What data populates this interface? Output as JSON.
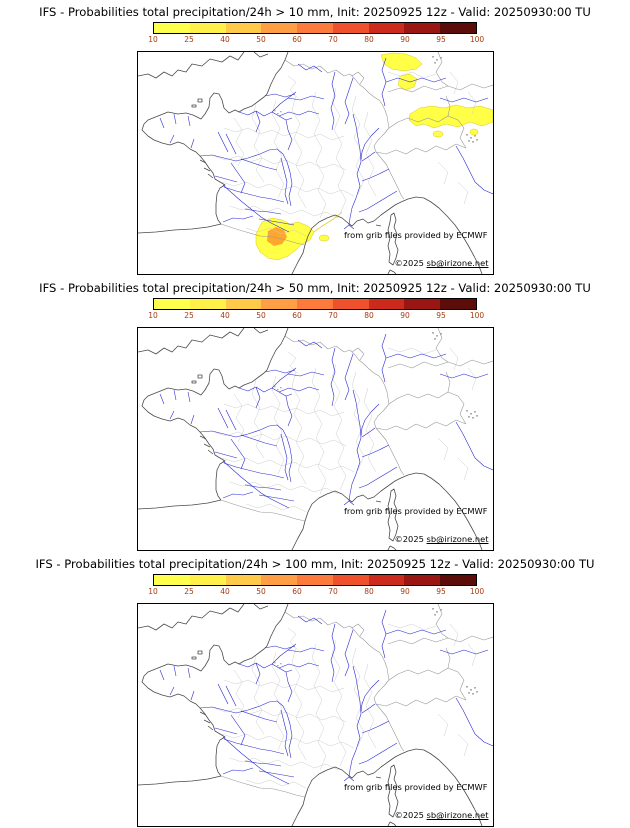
{
  "colorbar": {
    "ticks": [
      "10",
      "25",
      "40",
      "50",
      "60",
      "70",
      "80",
      "90",
      "95",
      "100"
    ],
    "colors": [
      "#ffff4d",
      "#fff04a",
      "#ffc94a",
      "#ff9e45",
      "#fb7a3c",
      "#f0512d",
      "#cc2a1c",
      "#991612",
      "#5c0d0a"
    ],
    "tick_color": "#a63c12"
  },
  "map": {
    "river_color": "#2b2bd6",
    "overlay_yellow": "#ffff45",
    "overlay_outline": "#ddc81a",
    "overlay_orange": "#ffa62e"
  },
  "panels": [
    {
      "title": "IFS - Probabilities total precipitation/24h > 10 mm, Init: 20250925 12z - Valid: 20250930:00 TU",
      "credit1": "from grib files provided by ECMWF",
      "credit2_prefix": "©2025 ",
      "credit2_link": "sb@irizone.net"
    },
    {
      "title": "IFS - Probabilities total precipitation/24h > 50 mm, Init: 20250925 12z - Valid: 20250930:00 TU",
      "credit1": "from grib files provided by ECMWF",
      "credit2_prefix": "©2025 ",
      "credit2_link": "sb@irizone.net"
    },
    {
      "title": "IFS - Probabilities total precipitation/24h > 100 mm, Init: 20250925 12z - Valid: 20250930:00 TU",
      "credit1": "from grib files provided by ECMWF",
      "credit2_prefix": "©2025 ",
      "credit2_link": "sb@irizone.net"
    }
  ]
}
